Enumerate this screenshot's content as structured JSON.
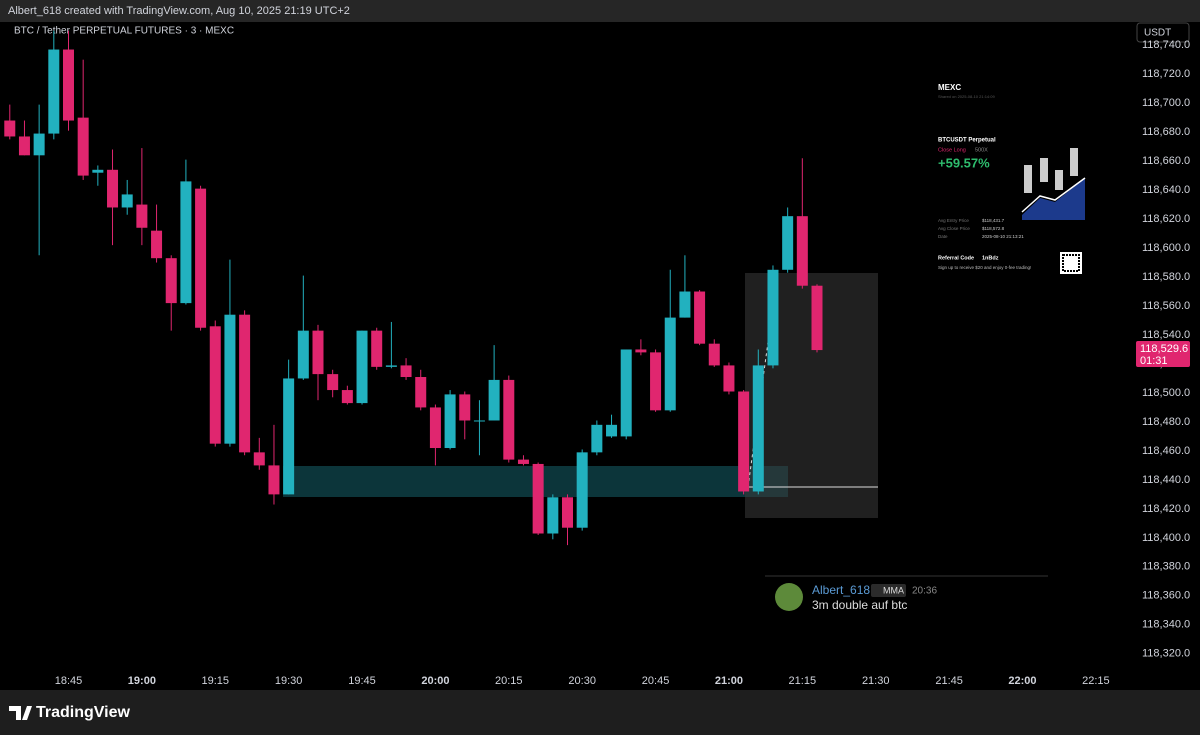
{
  "header": {
    "credit": "Albert_618 created with TradingView.com, Aug 10, 2025 21:19 UTC+2",
    "symbol": "BTC / Tether PERPETUAL FUTURES · 3 · MEXC",
    "currency": "USDT",
    "brand": "TradingView"
  },
  "chart_data": {
    "type": "candlestick",
    "x": [
      "18:33",
      "18:36",
      "18:39",
      "18:42",
      "18:45",
      "18:48",
      "18:51",
      "18:54",
      "18:57",
      "19:00",
      "19:03",
      "19:06",
      "19:09",
      "19:12",
      "19:15",
      "19:18",
      "19:21",
      "19:24",
      "19:27",
      "19:30",
      "19:33",
      "19:36",
      "19:39",
      "19:42",
      "19:45",
      "19:48",
      "19:51",
      "19:54",
      "19:57",
      "20:00",
      "20:03",
      "20:06",
      "20:09",
      "20:12",
      "20:15",
      "20:18",
      "20:21",
      "20:24",
      "20:27",
      "20:30",
      "20:33",
      "20:36",
      "20:39",
      "20:42",
      "20:45",
      "20:48",
      "20:51",
      "20:54",
      "20:57",
      "21:00",
      "21:03",
      "21:06",
      "21:09",
      "21:12",
      "21:15",
      "21:18"
    ],
    "open": [
      118688,
      118677,
      118664,
      118679,
      118737,
      118690,
      118652,
      118654,
      118628,
      118630,
      118612,
      118593,
      118562,
      118641,
      118546,
      118465,
      118554,
      118459,
      118450,
      118430,
      118510,
      118543,
      118513,
      118502,
      118493,
      118543,
      118518,
      118519,
      118511,
      118490,
      118462,
      118499,
      118481,
      118481,
      118509,
      118454,
      118451,
      118403,
      118428,
      118407,
      118459,
      118470,
      118470,
      118530,
      118528,
      118488,
      118552,
      118570,
      118534,
      118519,
      118501,
      118432,
      118519,
      118585,
      118622,
      118574
    ],
    "high": [
      118699,
      118688,
      118699,
      118750,
      118750,
      118730,
      118657,
      118668,
      118647,
      118669,
      118630,
      118595,
      118661,
      118643,
      118550,
      118592,
      118557,
      118469,
      118478,
      118523,
      118581,
      118547,
      118516,
      118505,
      118543,
      118545,
      118549,
      118524,
      118516,
      118492,
      118502,
      118501,
      118495,
      118533,
      118512,
      118457,
      118452,
      118430,
      118430,
      118461,
      118481,
      118485,
      118530,
      118537,
      118530,
      118585,
      118595,
      118571,
      118537,
      118521,
      118502,
      118530,
      118588,
      118628,
      118662,
      118575
    ],
    "low": [
      118675,
      118664,
      118595,
      118675,
      118681,
      118647,
      118643,
      118602,
      118623,
      118602,
      118590,
      118543,
      118561,
      118543,
      118463,
      118463,
      118457,
      118447,
      118423,
      118430,
      118509,
      118495,
      118497,
      118492,
      118492,
      118516,
      118517,
      118509,
      118488,
      118450,
      118461,
      118468,
      118457,
      118481,
      118452,
      118450,
      118402,
      118399,
      118395,
      118405,
      118457,
      118469,
      118468,
      118526,
      118487,
      118487,
      118552,
      118533,
      118518,
      118499,
      118430,
      118430,
      118517,
      118583,
      118572,
      118528
    ],
    "close": [
      118677,
      118664,
      118679,
      118737,
      118688,
      118650,
      118654,
      118628,
      118637,
      118614,
      118593,
      118562,
      118646,
      118545,
      118465,
      118554,
      118459,
      118450,
      118430,
      118510,
      118543,
      118513,
      118502,
      118493,
      118543,
      118518,
      118519,
      118511,
      118490,
      118462,
      118499,
      118481,
      118481,
      118509,
      118454,
      118451,
      118403,
      118428,
      118407,
      118459,
      118478,
      118478,
      118530,
      118528,
      118488,
      118552,
      118570,
      118534,
      118519,
      118501,
      118432,
      118519,
      118585,
      118622,
      118574,
      118529.6
    ],
    "up_color": "#22b1bf",
    "down_color": "#e0266f",
    "xlim": [
      "18:31",
      "22:23"
    ],
    "xticks": [
      "18:45",
      "19:00",
      "19:15",
      "19:30",
      "19:45",
      "20:00",
      "20:15",
      "20:30",
      "20:45",
      "21:00",
      "21:15",
      "21:30",
      "21:45",
      "22:00",
      "22:15"
    ],
    "ylim": [
      118295,
      118756
    ],
    "yticks": [
      {
        "value": 118320,
        "label": "118,320.0"
      },
      {
        "value": 118340,
        "label": "118,340.0"
      },
      {
        "value": 118360,
        "label": "118,360.0"
      },
      {
        "value": 118380,
        "label": "118,380.0"
      },
      {
        "value": 118400,
        "label": "118,400.0"
      },
      {
        "value": 118420,
        "label": "118,420.0"
      },
      {
        "value": 118440,
        "label": "118,440.0"
      },
      {
        "value": 118460,
        "label": "118,460.0"
      },
      {
        "value": 118480,
        "label": "118,480.0"
      },
      {
        "value": 118500,
        "label": "118,500.0"
      },
      {
        "value": 118520,
        "label": "118,520.0"
      },
      {
        "value": 118540,
        "label": "118,540.0"
      },
      {
        "value": 118560,
        "label": "118,560.0"
      },
      {
        "value": 118580,
        "label": "118,580.0"
      },
      {
        "value": 118600,
        "label": "118,600.0"
      },
      {
        "value": 118620,
        "label": "118,620.0"
      },
      {
        "value": 118640,
        "label": "118,640.0"
      },
      {
        "value": 118660,
        "label": "118,660.0"
      },
      {
        "value": 118680,
        "label": "118,680.0"
      },
      {
        "value": 118700,
        "label": "118,700.0"
      },
      {
        "value": 118720,
        "label": "118,720.0"
      },
      {
        "value": 118740,
        "label": "118,740.0"
      }
    ],
    "grid": false,
    "last_price": {
      "value": 118529.6,
      "label": "118,529.6",
      "countdown": "01:31"
    }
  },
  "share_card": {
    "exchange": "MEXC",
    "shared": "Shared on 2025-08-10 21:14:09",
    "pair": "BTCUSDT Perpetual",
    "side": "Close Long",
    "leverage": "500X",
    "pnl": "+59.57%",
    "rows": [
      [
        "Avg Entry Price",
        "$118,431.7"
      ],
      [
        "Avg Close Price",
        "$118,572.8"
      ],
      [
        "Date",
        "2025-08-10 21:13:21"
      ]
    ],
    "referral_label": "Referral Code",
    "referral_code": "1nBdz",
    "promo": "Sign up to receive $20 and enjoy 0-fee trading!"
  },
  "comment": {
    "author": "Albert_618",
    "badge": "MMA",
    "time": "20:36",
    "text": "3m double auf btc"
  }
}
